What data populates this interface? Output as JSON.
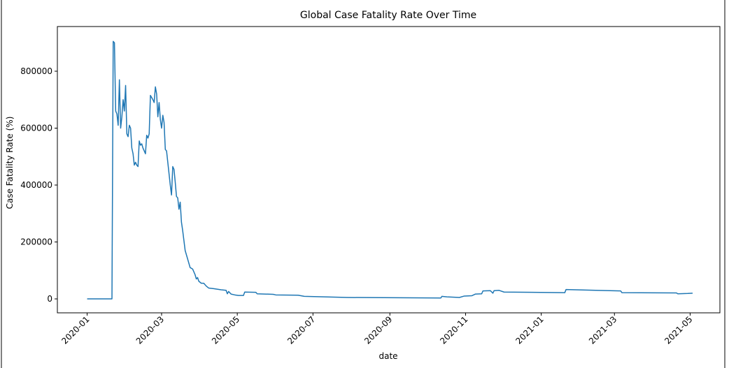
{
  "chart_data": {
    "type": "line",
    "title": "Global Case Fatality Rate Over Time",
    "xlabel": "date",
    "ylabel": "Case Fatality Rate (%)",
    "x": [
      0,
      20,
      21,
      22,
      23,
      24,
      25,
      26,
      27,
      28,
      29,
      30,
      31,
      32,
      33,
      34,
      35,
      36,
      37,
      38,
      39,
      40,
      41,
      42,
      43,
      44,
      45,
      46,
      47,
      48,
      49,
      50,
      51,
      53,
      54,
      55,
      56,
      57,
      58,
      59,
      60,
      61,
      62,
      63,
      64,
      66,
      67,
      68,
      69,
      70,
      71,
      72,
      73,
      74,
      75,
      76,
      77,
      79,
      81,
      83,
      85,
      87,
      88,
      89,
      90,
      92,
      94,
      96,
      98,
      102,
      108,
      112,
      113,
      114,
      116,
      119,
      122,
      126,
      127,
      136,
      137,
      150,
      152,
      170,
      175,
      210,
      285,
      286,
      290,
      300,
      304,
      310,
      313,
      318,
      319,
      325,
      327,
      328,
      332,
      336,
      385,
      386,
      410,
      430,
      431,
      475,
      476,
      484,
      488
    ],
    "series": [
      {
        "name": "Case Fatality Rate",
        "color": "#1f77b4",
        "values": [
          0,
          0,
          905000,
          900000,
          660000,
          650000,
          610000,
          770000,
          600000,
          640000,
          700000,
          660000,
          750000,
          580000,
          570000,
          610000,
          600000,
          530000,
          510000,
          470000,
          480000,
          470000,
          465000,
          555000,
          540000,
          545000,
          530000,
          520000,
          510000,
          575000,
          565000,
          580000,
          715000,
          700000,
          690000,
          745000,
          720000,
          640000,
          690000,
          630000,
          600000,
          645000,
          620000,
          525000,
          520000,
          440000,
          400000,
          365000,
          465000,
          455000,
          410000,
          360000,
          355000,
          315000,
          340000,
          270000,
          240000,
          170000,
          140000,
          110000,
          105000,
          85000,
          70000,
          75000,
          62000,
          55000,
          55000,
          45000,
          38000,
          36000,
          32000,
          30000,
          18000,
          26000,
          17000,
          14000,
          12000,
          12000,
          24000,
          23000,
          18000,
          16000,
          14000,
          13000,
          9000,
          5000,
          3000,
          9000,
          7000,
          5000,
          10000,
          11000,
          17000,
          18000,
          28000,
          29000,
          20000,
          29000,
          30000,
          24000,
          22000,
          33000,
          30000,
          28000,
          22000,
          21000,
          18000,
          19000,
          20000
        ]
      }
    ],
    "xlim": [
      -24,
      510
    ],
    "xticks": [
      {
        "value": 0,
        "label": "2020-01"
      },
      {
        "value": 60,
        "label": "2020-03"
      },
      {
        "value": 121,
        "label": "2020-05"
      },
      {
        "value": 182,
        "label": "2020-07"
      },
      {
        "value": 244,
        "label": "2020-09"
      },
      {
        "value": 305,
        "label": "2020-11"
      },
      {
        "value": 366,
        "label": "2021-01"
      },
      {
        "value": 425,
        "label": "2021-03"
      },
      {
        "value": 486,
        "label": "2021-05"
      }
    ],
    "ylim": [
      -49000,
      957000
    ],
    "yticks": [
      0,
      200000,
      400000,
      600000,
      800000
    ],
    "grid": false
  }
}
